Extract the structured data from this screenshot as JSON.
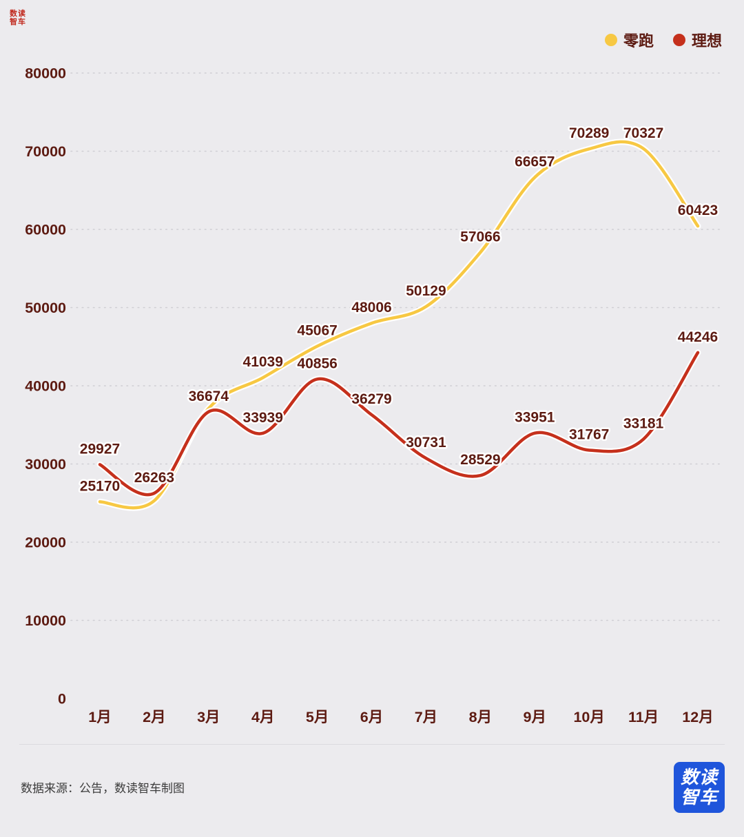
{
  "brand": {
    "seal_line1": "数读",
    "seal_line2": "智车"
  },
  "colors": {
    "background": "#ECEBEE",
    "yellow": "#F7C843",
    "red": "#C5301C",
    "label": "#5D1B12",
    "axis": "#5D1B12",
    "legend_text": "#5D1B12",
    "grid": "#CFCED3",
    "seal_red": "#C0281C",
    "logo_blue": "#1F55DB"
  },
  "chart_data": {
    "type": "line",
    "title": "",
    "categories": [
      "1月",
      "2月",
      "3月",
      "4月",
      "5月",
      "6月",
      "7月",
      "8月",
      "9月",
      "10月",
      "11月",
      "12月"
    ],
    "ylim": [
      0,
      80000
    ],
    "yticks": [
      0,
      10000,
      20000,
      30000,
      40000,
      50000,
      60000,
      70000,
      80000
    ],
    "grid": "dotted-horizontal",
    "legend_position": "top-right",
    "series": [
      {
        "name": "零跑",
        "color": "#F7C843",
        "values": [
          25170,
          25300,
          37100,
          41039,
          45067,
          48006,
          50129,
          57066,
          66657,
          70289,
          70327,
          60423
        ],
        "labels": [
          "25170",
          "",
          "",
          "41039",
          "45067",
          "48006",
          "50129",
          "57066",
          "66657",
          "70289",
          "70327",
          "60423"
        ]
      },
      {
        "name": "理想",
        "color": "#C5301C",
        "values": [
          29927,
          26263,
          36674,
          33939,
          40856,
          36279,
          30731,
          28529,
          33951,
          31767,
          33181,
          44246
        ],
        "labels": [
          "29927",
          "26263",
          "36674",
          "33939",
          "40856",
          "36279",
          "30731",
          "28529",
          "33951",
          "31767",
          "33181",
          "44246"
        ]
      }
    ]
  },
  "footer": {
    "source": "数据来源：公告，数读智车制图"
  },
  "logo": {
    "line1": "数读",
    "line2": "智车"
  }
}
